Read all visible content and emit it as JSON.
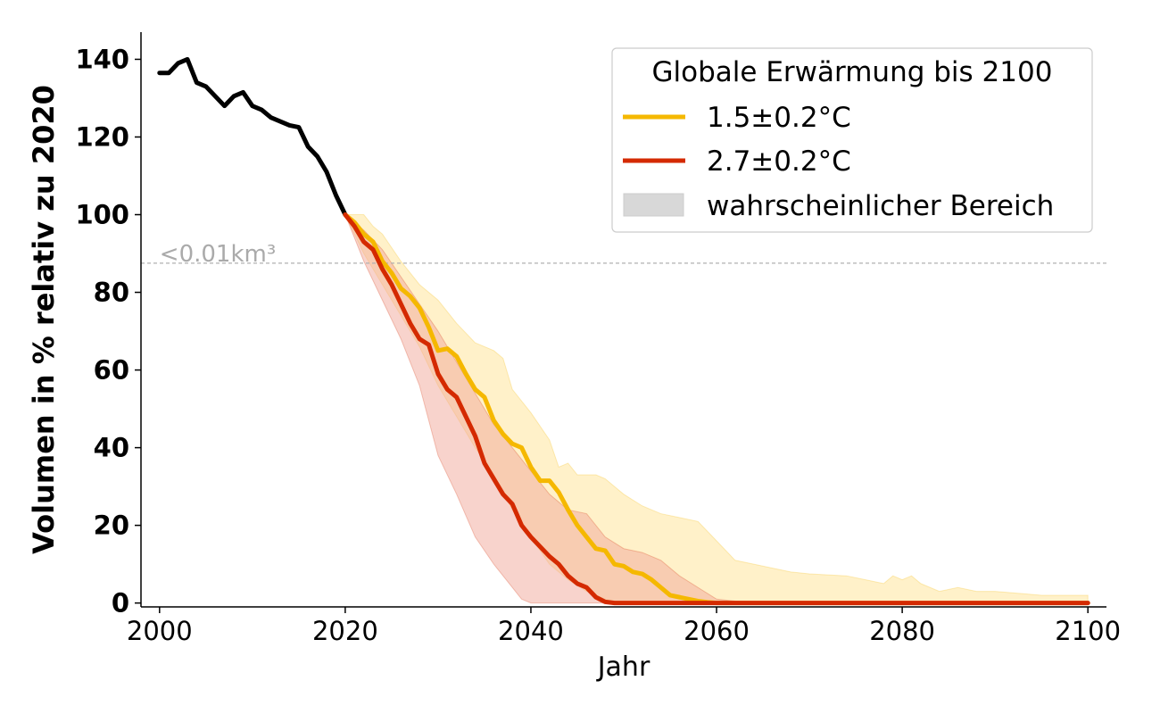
{
  "chart_data": {
    "type": "line",
    "xlabel": "Jahr",
    "ylabel": "Volumen in % relativ zu 2020",
    "xlim": [
      1998,
      2102
    ],
    "ylim": [
      -1,
      147
    ],
    "xticks": [
      "2000",
      "2020",
      "2040",
      "2060",
      "2080",
      "2100"
    ],
    "yticks": [
      "0",
      "20",
      "40",
      "60",
      "80",
      "100",
      "120",
      "140"
    ],
    "grid": false,
    "legend": {
      "placement": "top-right",
      "title": "Globale Erwärmung bis 2100",
      "entries": [
        "1.5±0.2°C",
        "2.7±0.2°C",
        "wahrscheinlicher Bereich"
      ]
    },
    "annotation": {
      "label": "<0.01km³",
      "y": 87.5,
      "color": "#aaaaaa"
    },
    "series": [
      {
        "name": "",
        "color": "#000000",
        "points": [
          [
            2000,
            136.5
          ],
          [
            2001,
            136.5
          ],
          [
            2002,
            139
          ],
          [
            2003,
            140
          ],
          [
            2004,
            134
          ],
          [
            2005,
            133
          ],
          [
            2006,
            130.5
          ],
          [
            2007,
            128
          ],
          [
            2008,
            130.5
          ],
          [
            2009,
            131.5
          ],
          [
            2010,
            128
          ],
          [
            2011,
            127
          ],
          [
            2012,
            125
          ],
          [
            2013,
            124
          ],
          [
            2014,
            123
          ],
          [
            2015,
            122.5
          ],
          [
            2016,
            117.5
          ],
          [
            2017,
            115
          ],
          [
            2018,
            111
          ],
          [
            2019,
            105
          ],
          [
            2020,
            100
          ]
        ]
      },
      {
        "name": "1.5±0.2°C",
        "color": "#f5b800",
        "band_color": "#ffe9a8",
        "points": [
          [
            2020,
            100
          ],
          [
            2021,
            98
          ],
          [
            2022,
            95
          ],
          [
            2023,
            93
          ],
          [
            2024,
            88
          ],
          [
            2025,
            85
          ],
          [
            2026,
            81
          ],
          [
            2027,
            79
          ],
          [
            2028,
            76
          ],
          [
            2029,
            71
          ],
          [
            2030,
            65
          ],
          [
            2031,
            65.5
          ],
          [
            2032,
            63.5
          ],
          [
            2033,
            59
          ],
          [
            2034,
            55
          ],
          [
            2035,
            53
          ],
          [
            2036,
            47
          ],
          [
            2037,
            43.5
          ],
          [
            2038,
            41
          ],
          [
            2039,
            40
          ],
          [
            2040,
            35
          ],
          [
            2041,
            31.5
          ],
          [
            2042,
            31.5
          ],
          [
            2043,
            28.5
          ],
          [
            2044,
            24
          ],
          [
            2045,
            20
          ],
          [
            2046,
            17
          ],
          [
            2047,
            14
          ],
          [
            2048,
            13.5
          ],
          [
            2049,
            10
          ],
          [
            2050,
            9.5
          ],
          [
            2051,
            8
          ],
          [
            2052,
            7.5
          ],
          [
            2053,
            6
          ],
          [
            2054,
            4
          ],
          [
            2055,
            2
          ],
          [
            2056,
            1.5
          ],
          [
            2057,
            1
          ],
          [
            2058,
            0.5
          ],
          [
            2059,
            0.2
          ],
          [
            2060,
            0
          ],
          [
            2070,
            0
          ],
          [
            2080,
            0
          ],
          [
            2090,
            0
          ],
          [
            2100,
            0
          ]
        ],
        "lower": [
          [
            2020,
            100
          ],
          [
            2022,
            90
          ],
          [
            2024,
            82
          ],
          [
            2026,
            74
          ],
          [
            2028,
            66
          ],
          [
            2030,
            56
          ],
          [
            2032,
            48
          ],
          [
            2034,
            40
          ],
          [
            2036,
            33
          ],
          [
            2038,
            24
          ],
          [
            2040,
            17
          ],
          [
            2042,
            10
          ],
          [
            2044,
            6
          ],
          [
            2046,
            3
          ],
          [
            2048,
            1
          ],
          [
            2050,
            0
          ],
          [
            2060,
            0
          ],
          [
            2070,
            0
          ],
          [
            2080,
            0
          ],
          [
            2090,
            0
          ],
          [
            2100,
            0
          ]
        ],
        "upper": [
          [
            2020,
            100
          ],
          [
            2022,
            100
          ],
          [
            2023,
            97
          ],
          [
            2024,
            95
          ],
          [
            2026,
            88
          ],
          [
            2028,
            82
          ],
          [
            2030,
            78
          ],
          [
            2032,
            72
          ],
          [
            2034,
            67
          ],
          [
            2036,
            65
          ],
          [
            2037,
            63
          ],
          [
            2038,
            55
          ],
          [
            2040,
            49
          ],
          [
            2042,
            42
          ],
          [
            2043,
            35
          ],
          [
            2044,
            36
          ],
          [
            2045,
            33
          ],
          [
            2046,
            33
          ],
          [
            2047,
            33
          ],
          [
            2048,
            32
          ],
          [
            2049,
            30
          ],
          [
            2050,
            28
          ],
          [
            2052,
            25
          ],
          [
            2054,
            23
          ],
          [
            2056,
            22
          ],
          [
            2058,
            21
          ],
          [
            2060,
            16
          ],
          [
            2062,
            11
          ],
          [
            2064,
            10
          ],
          [
            2066,
            9
          ],
          [
            2068,
            8
          ],
          [
            2070,
            7.5
          ],
          [
            2074,
            7
          ],
          [
            2076,
            6
          ],
          [
            2078,
            5
          ],
          [
            2079,
            7
          ],
          [
            2080,
            6
          ],
          [
            2081,
            7
          ],
          [
            2082,
            5
          ],
          [
            2084,
            3
          ],
          [
            2086,
            4
          ],
          [
            2088,
            3
          ],
          [
            2090,
            3
          ],
          [
            2095,
            2
          ],
          [
            2098,
            2
          ],
          [
            2100,
            2
          ]
        ]
      },
      {
        "name": "2.7±0.2°C",
        "color": "#d42a00",
        "band_color": "#f2a899",
        "points": [
          [
            2020,
            100
          ],
          [
            2021,
            97
          ],
          [
            2022,
            93
          ],
          [
            2023,
            91
          ],
          [
            2024,
            86
          ],
          [
            2025,
            82
          ],
          [
            2026,
            77
          ],
          [
            2027,
            72
          ],
          [
            2028,
            68
          ],
          [
            2029,
            66.5
          ],
          [
            2030,
            59
          ],
          [
            2031,
            55
          ],
          [
            2032,
            53
          ],
          [
            2033,
            48
          ],
          [
            2034,
            43
          ],
          [
            2035,
            36
          ],
          [
            2036,
            32
          ],
          [
            2037,
            28
          ],
          [
            2038,
            25.5
          ],
          [
            2039,
            20
          ],
          [
            2040,
            17
          ],
          [
            2041,
            14.5
          ],
          [
            2042,
            12
          ],
          [
            2043,
            10
          ],
          [
            2044,
            7
          ],
          [
            2045,
            5
          ],
          [
            2046,
            4
          ],
          [
            2047,
            1.5
          ],
          [
            2048,
            0.3
          ],
          [
            2049,
            0
          ],
          [
            2060,
            0
          ],
          [
            2070,
            0
          ],
          [
            2080,
            0
          ],
          [
            2090,
            0
          ],
          [
            2100,
            0
          ]
        ],
        "lower": [
          [
            2020,
            100
          ],
          [
            2022,
            88
          ],
          [
            2024,
            78
          ],
          [
            2026,
            68
          ],
          [
            2028,
            56
          ],
          [
            2030,
            38
          ],
          [
            2032,
            28
          ],
          [
            2034,
            17
          ],
          [
            2036,
            10
          ],
          [
            2038,
            4
          ],
          [
            2039,
            1
          ],
          [
            2040,
            0
          ],
          [
            2060,
            0
          ],
          [
            2080,
            0
          ],
          [
            2100,
            0
          ]
        ],
        "upper": [
          [
            2020,
            100
          ],
          [
            2022,
            96
          ],
          [
            2024,
            91
          ],
          [
            2026,
            84
          ],
          [
            2028,
            77
          ],
          [
            2030,
            70
          ],
          [
            2032,
            62
          ],
          [
            2034,
            54
          ],
          [
            2036,
            46
          ],
          [
            2038,
            40
          ],
          [
            2040,
            34
          ],
          [
            2042,
            28
          ],
          [
            2044,
            24
          ],
          [
            2046,
            23
          ],
          [
            2048,
            17
          ],
          [
            2050,
            14
          ],
          [
            2052,
            13
          ],
          [
            2054,
            11
          ],
          [
            2056,
            7
          ],
          [
            2058,
            4
          ],
          [
            2060,
            1
          ],
          [
            2062,
            0.5
          ],
          [
            2064,
            0
          ],
          [
            2080,
            0
          ],
          [
            2100,
            0
          ]
        ]
      }
    ]
  }
}
